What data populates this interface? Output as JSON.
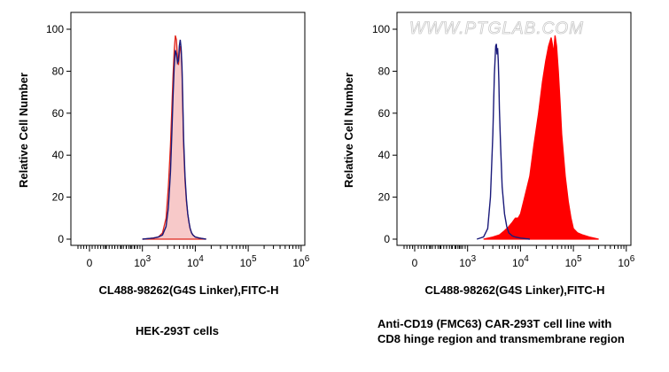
{
  "watermark": "WWW.PTGLAB.COM",
  "colors": {
    "control_line": "#1a1a7a",
    "panel1_fill": "#f7c9c9",
    "panel1_line": "#e0251b",
    "panel2_fill": "#ff0000"
  },
  "chart_data": [
    {
      "type": "area",
      "xlabel": "CL488-98262(G4S Linker),FITC-H",
      "ylabel": "Relative Cell Number",
      "caption": "HEK-293T cells",
      "x_scale": "biexponential",
      "ylim": [
        0,
        100
      ],
      "y_ticks": [
        "0",
        "20",
        "40",
        "60",
        "80",
        "100"
      ],
      "x_ticks": [
        {
          "label": "0",
          "exp": ""
        },
        {
          "label": "10",
          "exp": "3"
        },
        {
          "label": "10",
          "exp": "4"
        },
        {
          "label": "10",
          "exp": "5"
        },
        {
          "label": "10",
          "exp": "6"
        }
      ],
      "series": [
        {
          "style": "filled",
          "x": [
            1000,
            1600,
            2000,
            2400,
            2800,
            3100,
            3400,
            3600,
            3800,
            4000,
            4200,
            4400,
            4600,
            4800,
            5000,
            5200,
            5400,
            5600,
            5800,
            6000,
            6400,
            6800,
            7200,
            7600,
            8000,
            8500,
            9000,
            10000,
            12000,
            16000
          ],
          "y": [
            0,
            0.5,
            1,
            3,
            10,
            25,
            45,
            62,
            78,
            90,
            97,
            95,
            87,
            83,
            88,
            92,
            90,
            80,
            62,
            45,
            28,
            18,
            12,
            8,
            5,
            3,
            2,
            1,
            0.5,
            0
          ]
        },
        {
          "style": "line",
          "x": [
            1000,
            1600,
            2000,
            2400,
            2800,
            3100,
            3400,
            3600,
            3800,
            4000,
            4200,
            4400,
            4600,
            4800,
            5000,
            5200,
            5400,
            5600,
            5800,
            6000,
            6400,
            6800,
            7200,
            7600,
            8000,
            8500,
            9000,
            10000,
            12000,
            16000
          ],
          "y": [
            0,
            0.5,
            1,
            2,
            6,
            15,
            32,
            50,
            68,
            82,
            90,
            88,
            84,
            85,
            92,
            95,
            91,
            82,
            66,
            48,
            30,
            19,
            12,
            8,
            5,
            3,
            2,
            1,
            0.5,
            0
          ]
        }
      ]
    },
    {
      "type": "area",
      "xlabel": "CL488-98262(G4S Linker),FITC-H",
      "ylabel": "Relative Cell Number",
      "caption_lines": [
        "Anti-CD19 (FMC63) CAR-293T cell line with",
        "CD8 hinge region and transmembrane region"
      ],
      "x_scale": "biexponential",
      "ylim": [
        0,
        100
      ],
      "y_ticks": [
        "0",
        "20",
        "40",
        "60",
        "80",
        "100"
      ],
      "x_ticks": [
        {
          "label": "0",
          "exp": ""
        },
        {
          "label": "10",
          "exp": "3"
        },
        {
          "label": "10",
          "exp": "4"
        },
        {
          "label": "10",
          "exp": "5"
        },
        {
          "label": "10",
          "exp": "6"
        }
      ],
      "series": [
        {
          "style": "filled",
          "x": [
            2000,
            3000,
            4000,
            5000,
            6000,
            7000,
            8000,
            9000,
            10000,
            12000,
            15000,
            18000,
            22000,
            26000,
            30000,
            34000,
            38000,
            40000,
            42000,
            45000,
            48000,
            52000,
            56000,
            60000,
            70000,
            80000,
            90000,
            100000,
            120000,
            150000,
            200000,
            300000
          ],
          "y": [
            0,
            1,
            2,
            4,
            6,
            8,
            10,
            10,
            12,
            20,
            30,
            45,
            60,
            75,
            85,
            92,
            96,
            93,
            88,
            97,
            92,
            80,
            65,
            50,
            30,
            18,
            10,
            5,
            3,
            2,
            1,
            0
          ]
        },
        {
          "style": "line",
          "x": [
            1500,
            2000,
            2400,
            2700,
            3000,
            3200,
            3400,
            3500,
            3600,
            3700,
            3800,
            3900,
            4000,
            4200,
            4500,
            5000,
            5500,
            6000,
            7000,
            8000,
            10000,
            15000
          ],
          "y": [
            0,
            1,
            5,
            20,
            50,
            78,
            92,
            93,
            88,
            91,
            85,
            75,
            62,
            45,
            25,
            12,
            6,
            3,
            1.5,
            1,
            0.5,
            0
          ]
        }
      ]
    }
  ]
}
